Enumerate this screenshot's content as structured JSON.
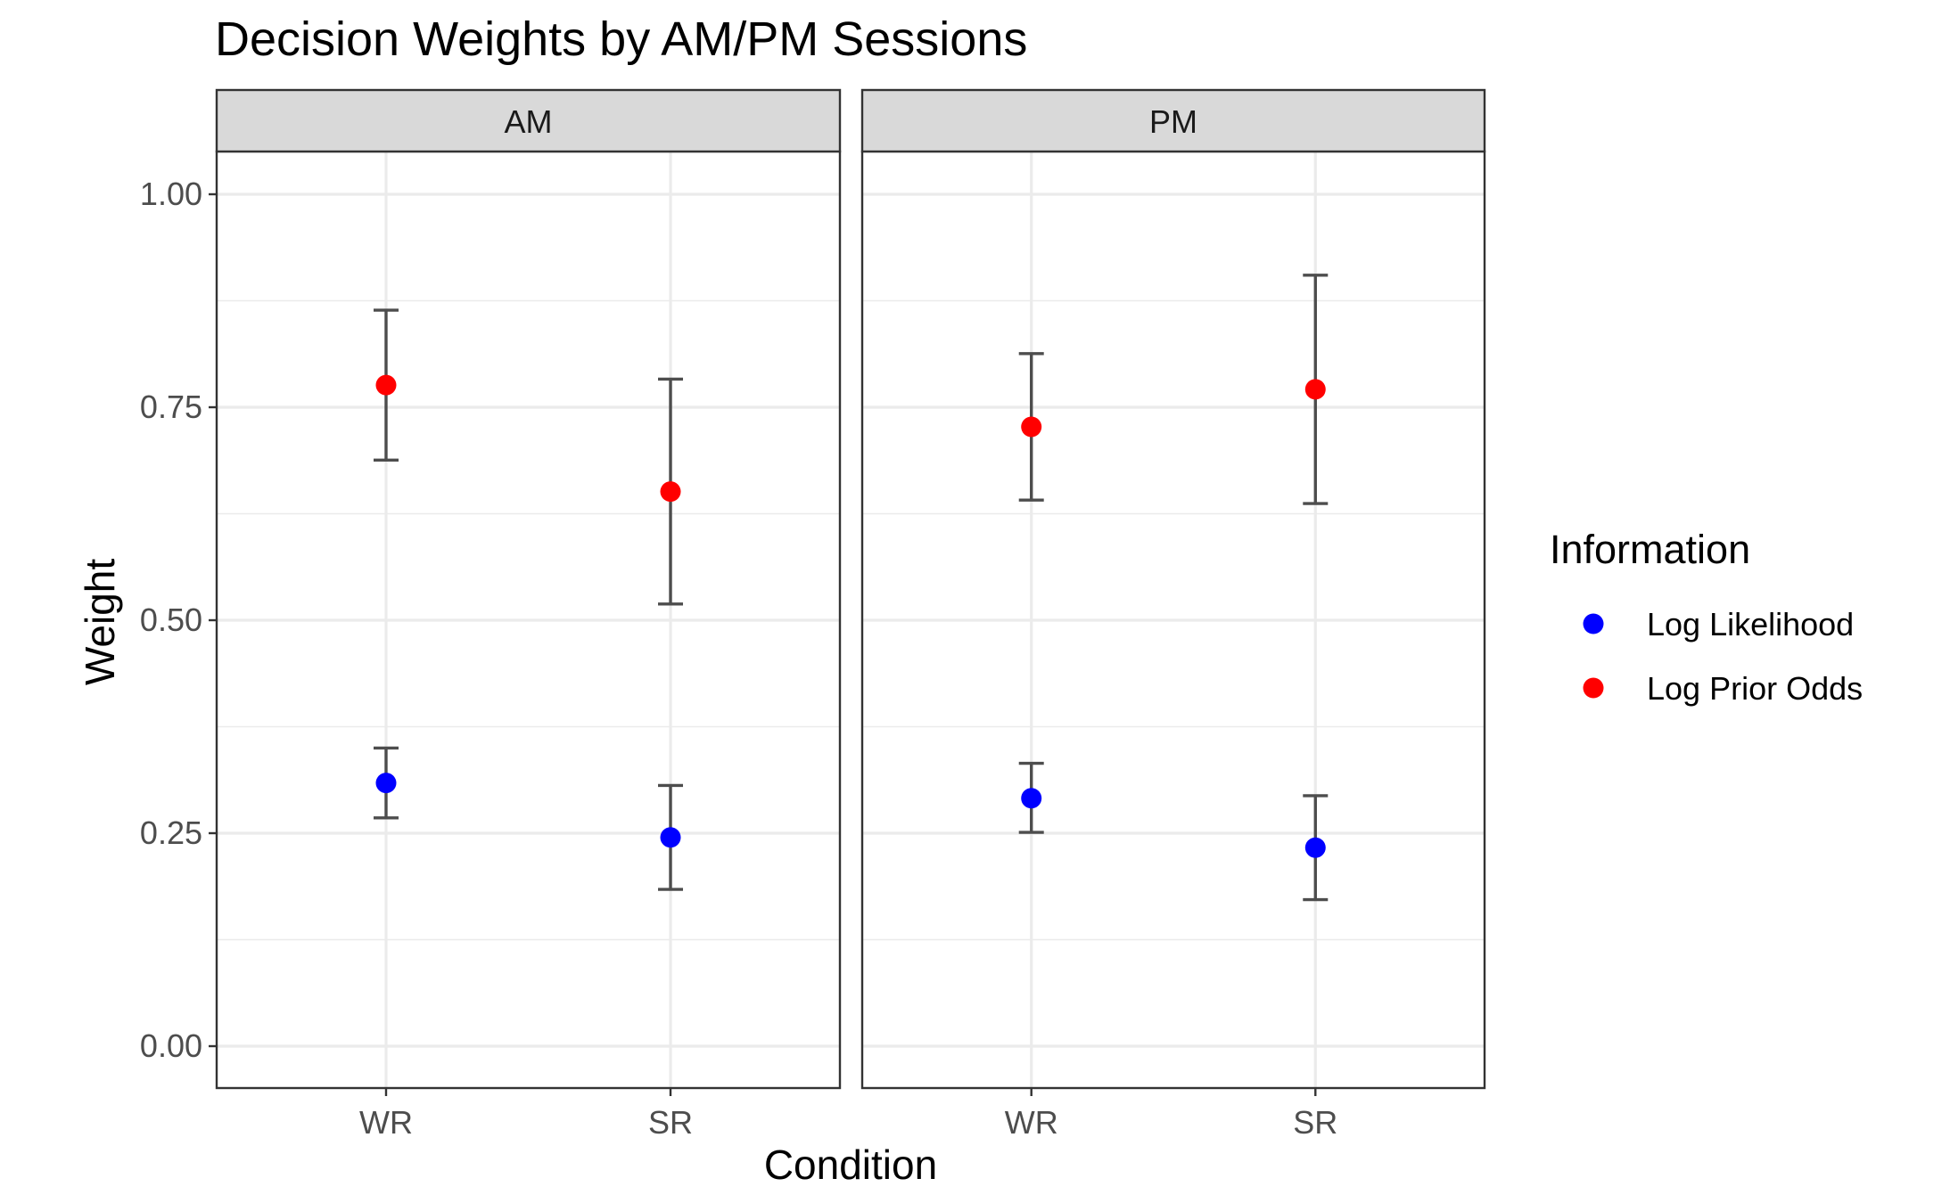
{
  "chart_data": {
    "type": "scatter",
    "title": "Decision Weights by AM/PM Sessions",
    "xlabel": "Condition",
    "ylabel": "Weight",
    "ylim": [
      -0.05,
      1.05
    ],
    "y_ticks": [
      "0.00",
      "0.25",
      "0.50",
      "0.75",
      "1.00"
    ],
    "y_tick_values": [
      0,
      0.25,
      0.5,
      0.75,
      1.0
    ],
    "categories": [
      "WR",
      "SR"
    ],
    "panels": [
      "AM",
      "PM"
    ],
    "grid": true,
    "legend": {
      "title": "Information",
      "placement": "right"
    },
    "series": [
      {
        "name": "Log Likelihood",
        "color": "#0000ff",
        "points": [
          {
            "panel": "AM",
            "x": "WR",
            "y": 0.309,
            "ymin": 0.268,
            "ymax": 0.35
          },
          {
            "panel": "AM",
            "x": "SR",
            "y": 0.245,
            "ymin": 0.184,
            "ymax": 0.306
          },
          {
            "panel": "PM",
            "x": "WR",
            "y": 0.291,
            "ymin": 0.251,
            "ymax": 0.332
          },
          {
            "panel": "PM",
            "x": "SR",
            "y": 0.233,
            "ymin": 0.172,
            "ymax": 0.294
          }
        ]
      },
      {
        "name": "Log Prior Odds",
        "color": "#ff0000",
        "points": [
          {
            "panel": "AM",
            "x": "WR",
            "y": 0.776,
            "ymin": 0.688,
            "ymax": 0.864
          },
          {
            "panel": "AM",
            "x": "SR",
            "y": 0.651,
            "ymin": 0.519,
            "ymax": 0.783
          },
          {
            "panel": "PM",
            "x": "WR",
            "y": 0.727,
            "ymin": 0.641,
            "ymax": 0.813
          },
          {
            "panel": "PM",
            "x": "SR",
            "y": 0.771,
            "ymin": 0.637,
            "ymax": 0.905
          }
        ]
      }
    ],
    "errorbar_color": "#4d4d4d",
    "strip_fill": "#d9d9d9",
    "grid_color": "#ebebeb"
  }
}
